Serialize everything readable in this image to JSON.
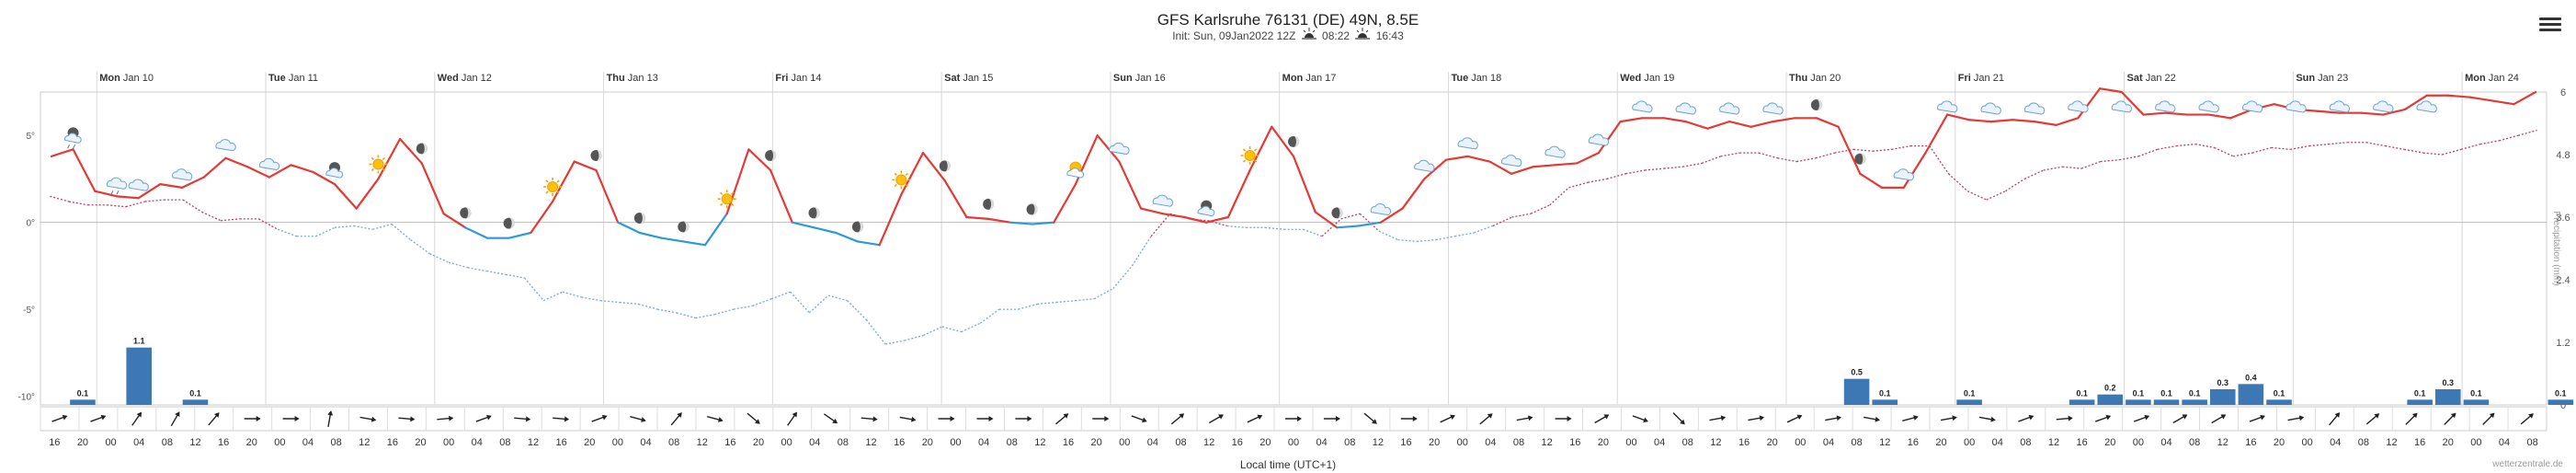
{
  "header": {
    "title": "GFS Karlsruhe 76131 (DE) 49N, 8.5E",
    "init": "Init: Sun, 09Jan2022 12Z",
    "sunrise": "08:22",
    "sunset": "16:43"
  },
  "footer": {
    "xlabel": "Local time (UTC+1)",
    "credit": "wetterzentrale.de"
  },
  "colors": {
    "warm": "#e53935",
    "cold": "#2c9ad9",
    "dew": "#b0416a",
    "dew_cold": "#7aa8c8",
    "precip": "#3d78b5"
  },
  "chart_data": {
    "type": "line",
    "title": "GFS Karlsruhe 76131 (DE) 49N, 8.5E",
    "xlabel": "Local time (UTC+1)",
    "y_left": {
      "label": "Temperature (°C)",
      "ticks": [
        "5°",
        "0°",
        "-5°",
        "-10°"
      ],
      "tick_values": [
        5,
        0,
        -5,
        -10
      ],
      "range": [
        -10.5,
        7.5
      ]
    },
    "y_right": {
      "label": "Precipitation (mm)",
      "ticks": [
        "6",
        "4.8",
        "3.6",
        "2.4",
        "1.2",
        "0"
      ],
      "tick_values": [
        6,
        4.8,
        3.6,
        2.4,
        1.2,
        0
      ],
      "range": [
        0,
        6
      ]
    },
    "x_start_hour": 16,
    "step_hours": 4,
    "days": [
      {
        "dow": "Mon",
        "date": "Jan 10",
        "index": 2
      },
      {
        "dow": "Tue",
        "date": "Jan 11",
        "index": 8
      },
      {
        "dow": "Wed",
        "date": "Jan 12",
        "index": 14
      },
      {
        "dow": "Thu",
        "date": "Jan 13",
        "index": 20
      },
      {
        "dow": "Fri",
        "date": "Jan 14",
        "index": 26
      },
      {
        "dow": "Sat",
        "date": "Jan 15",
        "index": 32
      },
      {
        "dow": "Sun",
        "date": "Jan 16",
        "index": 38
      },
      {
        "dow": "Mon",
        "date": "Jan 17",
        "index": 44
      },
      {
        "dow": "Tue",
        "date": "Jan 18",
        "index": 50
      },
      {
        "dow": "Wed",
        "date": "Jan 19",
        "index": 56
      },
      {
        "dow": "Thu",
        "date": "Jan 20",
        "index": 62
      },
      {
        "dow": "Fri",
        "date": "Jan 21",
        "index": 68
      },
      {
        "dow": "Sat",
        "date": "Jan 22",
        "index": 74
      },
      {
        "dow": "Sun",
        "date": "Jan 23",
        "index": 80
      },
      {
        "dow": "Mon",
        "date": "Jan 24",
        "index": 86
      }
    ],
    "hour_labels": [
      "16",
      "20",
      "00",
      "04",
      "08",
      "12",
      "16",
      "20",
      "00",
      "04",
      "08",
      "12",
      "16",
      "20",
      "00",
      "04",
      "08",
      "12",
      "16",
      "20",
      "00",
      "04",
      "08",
      "12",
      "16",
      "20",
      "00",
      "04",
      "08",
      "12",
      "16",
      "20",
      "00",
      "04",
      "08",
      "12",
      "16",
      "20",
      "00",
      "04",
      "08",
      "12",
      "16",
      "20",
      "00",
      "04",
      "08",
      "12",
      "16",
      "20",
      "00",
      "04",
      "08",
      "12",
      "16",
      "20",
      "00",
      "04",
      "08",
      "12",
      "16",
      "20",
      "00",
      "04",
      "08",
      "12",
      "16",
      "20",
      "00",
      "04",
      "08",
      "12",
      "16",
      "20",
      "00",
      "04",
      "08",
      "12",
      "16",
      "20",
      "00",
      "04",
      "08",
      "12",
      "16",
      "20",
      "00",
      "04",
      "08"
    ],
    "series": [
      {
        "name": "Temperature (2 m)",
        "unit": "°C",
        "values": [
          3.8,
          4.2,
          1.8,
          1.5,
          1.4,
          2.2,
          2.0,
          2.6,
          3.7,
          3.2,
          2.6,
          3.3,
          2.9,
          2.2,
          0.8,
          2.5,
          4.8,
          3.4,
          0.5,
          -0.3,
          -0.9,
          -0.9,
          -0.6,
          1.2,
          3.5,
          3.0,
          0.0,
          -0.6,
          -0.9,
          -1.1,
          -1.3,
          0.5,
          4.2,
          3.0,
          0.0,
          -0.3,
          -0.6,
          -1.1,
          -1.3,
          1.6,
          4.0,
          2.4,
          0.3,
          0.2,
          0.0,
          -0.1,
          0.0,
          2.2,
          5.0,
          3.5,
          0.8,
          0.5,
          0.3,
          0.0,
          0.3,
          3.0,
          5.5,
          3.8,
          0.6,
          -0.3,
          -0.2,
          0.0,
          0.8,
          2.5,
          3.6,
          3.8,
          3.5,
          2.8,
          3.2,
          3.3,
          3.4,
          4.0,
          5.8,
          6.0,
          6.0,
          5.8,
          5.4,
          5.8,
          5.5,
          5.8,
          6.0,
          6.0,
          5.5,
          2.8,
          2.0,
          2.0,
          4.0,
          6.2,
          5.9,
          5.8,
          5.9,
          5.8,
          5.6,
          6.0,
          7.7,
          7.5,
          6.2,
          6.3,
          6.2,
          6.2,
          6.0,
          6.5,
          6.8,
          6.5,
          6.4,
          6.3,
          6.3,
          6.2,
          6.5,
          7.3,
          7.3,
          7.2,
          7.0,
          6.8,
          7.5
        ]
      },
      {
        "name": "Dew point",
        "unit": "°C",
        "values": [
          1.5,
          1.2,
          1.0,
          1.0,
          0.9,
          1.2,
          1.3,
          1.3,
          0.6,
          0.1,
          0.2,
          0.2,
          -0.4,
          -0.8,
          -0.8,
          -0.3,
          -0.2,
          -0.4,
          -0.1,
          -1.0,
          -1.8,
          -2.3,
          -2.6,
          -2.8,
          -3.0,
          -3.2,
          -4.5,
          -4.0,
          -4.3,
          -4.5,
          -4.6,
          -4.7,
          -5.0,
          -5.2,
          -5.5,
          -5.3,
          -5.0,
          -4.8,
          -4.4,
          -4.0,
          -5.2,
          -4.2,
          -4.5,
          -5.6,
          -7.0,
          -6.8,
          -6.5,
          -6.0,
          -6.3,
          -5.8,
          -5.0,
          -5.0,
          -4.7,
          -4.6,
          -4.5,
          -4.4,
          -3.8,
          -2.5,
          -0.8,
          0.5,
          0.2,
          0.1,
          -0.2,
          -0.3,
          -0.3,
          -0.4,
          -0.4,
          -0.8,
          0.2,
          0.5,
          -0.5,
          -1.0,
          -1.1,
          -1.0,
          -0.8,
          -0.6,
          -0.2,
          0.3,
          0.5,
          1.0,
          2.0,
          2.3,
          2.5,
          2.8,
          3.0,
          3.1,
          3.2,
          3.4,
          3.8,
          4.0,
          4.0,
          3.7,
          3.5,
          3.7,
          4.0,
          4.2,
          4.1,
          4.2,
          4.4,
          4.4,
          2.8,
          1.8,
          1.3,
          1.8,
          2.5,
          3.0,
          3.2,
          3.1,
          3.5,
          3.6,
          3.8,
          4.2,
          4.4,
          4.5,
          4.3,
          3.8,
          4.0,
          4.3,
          4.2,
          4.4,
          4.5,
          4.6,
          4.6,
          4.4,
          4.2,
          4.0,
          3.9,
          4.2,
          4.5,
          4.7,
          5.0,
          5.3
        ]
      },
      {
        "name": "Precipitation",
        "unit": "mm",
        "bars": [
          {
            "index": 1,
            "value": 0.1
          },
          {
            "index": 3,
            "value": 1.1
          },
          {
            "index": 5,
            "value": 0.1
          },
          {
            "index": 64,
            "value": 0.5
          },
          {
            "index": 65,
            "value": 0.1
          },
          {
            "index": 68,
            "value": 0.1
          },
          {
            "index": 72,
            "value": 0.1
          },
          {
            "index": 73,
            "value": 0.2
          },
          {
            "index": 74,
            "value": 0.1
          },
          {
            "index": 75,
            "value": 0.1
          },
          {
            "index": 76,
            "value": 0.1
          },
          {
            "index": 77,
            "value": 0.3
          },
          {
            "index": 78,
            "value": 0.4
          },
          {
            "index": 79,
            "value": 0.1
          },
          {
            "index": 84,
            "value": 0.1
          },
          {
            "index": 85,
            "value": 0.3
          },
          {
            "index": 86,
            "value": 0.1
          },
          {
            "index": 89,
            "value": 0.1
          },
          {
            "index": 95,
            "value": 0.1
          },
          {
            "index": 98,
            "value": 0.1
          },
          {
            "index": 99,
            "value": 0.1
          },
          {
            "index": 100,
            "value": 0.1
          },
          {
            "index": 101,
            "value": 0.1
          },
          {
            "index": 103,
            "value": 0.1
          },
          {
            "index": 107,
            "value": 0.1
          },
          {
            "index": 109,
            "value": 0.1
          }
        ]
      },
      {
        "name": "Wind direction (deg, arrow points toward)",
        "values": [
          70,
          70,
          35,
          30,
          40,
          90,
          90,
          10,
          100,
          95,
          85,
          70,
          95,
          95,
          70,
          105,
          40,
          105,
          130,
          35,
          125,
          95,
          100,
          90,
          90,
          90,
          50,
          90,
          110,
          50,
          60,
          65,
          90,
          90,
          130,
          90,
          65,
          50,
          80,
          90,
          60,
          110,
          135,
          80,
          80,
          65,
          80,
          100,
          75,
          80,
          100,
          70,
          85,
          70,
          70,
          60,
          60,
          70,
          80,
          40,
          50,
          45,
          45,
          45,
          50
        ]
      }
    ],
    "weather_icons": [
      {
        "index": 1,
        "type": "night-rain"
      },
      {
        "index": 3,
        "type": "cloud-rain"
      },
      {
        "index": 4,
        "type": "cloud"
      },
      {
        "index": 6,
        "type": "cloud"
      },
      {
        "index": 8,
        "type": "cloud"
      },
      {
        "index": 10,
        "type": "cloud"
      },
      {
        "index": 13,
        "type": "night-partly"
      },
      {
        "index": 15,
        "type": "sun"
      },
      {
        "index": 17,
        "type": "moon"
      },
      {
        "index": 19,
        "type": "moon"
      },
      {
        "index": 21,
        "type": "moon"
      },
      {
        "index": 23,
        "type": "sun"
      },
      {
        "index": 25,
        "type": "moon"
      },
      {
        "index": 27,
        "type": "moon"
      },
      {
        "index": 29,
        "type": "moon"
      },
      {
        "index": 31,
        "type": "sun"
      },
      {
        "index": 33,
        "type": "moon"
      },
      {
        "index": 35,
        "type": "moon"
      },
      {
        "index": 37,
        "type": "moon"
      },
      {
        "index": 39,
        "type": "sun"
      },
      {
        "index": 41,
        "type": "moon"
      },
      {
        "index": 43,
        "type": "moon"
      },
      {
        "index": 45,
        "type": "moon"
      },
      {
        "index": 47,
        "type": "sun-cloud"
      },
      {
        "index": 49,
        "type": "cloud"
      },
      {
        "index": 51,
        "type": "cloud"
      },
      {
        "index": 53,
        "type": "night-partly"
      },
      {
        "index": 55,
        "type": "sun"
      },
      {
        "index": 57,
        "type": "moon"
      },
      {
        "index": 59,
        "type": "moon"
      },
      {
        "index": 61,
        "type": "cloud"
      },
      {
        "index": 63,
        "type": "cloud"
      },
      {
        "index": 65,
        "type": "cloud"
      },
      {
        "index": 67,
        "type": "cloud"
      },
      {
        "index": 69,
        "type": "cloud"
      },
      {
        "index": 71,
        "type": "cloud"
      },
      {
        "index": 73,
        "type": "cloud"
      },
      {
        "index": 75,
        "type": "cloud"
      },
      {
        "index": 77,
        "type": "cloud"
      },
      {
        "index": 79,
        "type": "cloud"
      },
      {
        "index": 81,
        "type": "moon"
      },
      {
        "index": 83,
        "type": "moon"
      },
      {
        "index": 85,
        "type": "cloud"
      },
      {
        "index": 87,
        "type": "cloud"
      },
      {
        "index": 89,
        "type": "cloud"
      },
      {
        "index": 91,
        "type": "cloud"
      },
      {
        "index": 93,
        "type": "cloud"
      },
      {
        "index": 95,
        "type": "cloud"
      },
      {
        "index": 97,
        "type": "cloud"
      },
      {
        "index": 99,
        "type": "cloud"
      },
      {
        "index": 101,
        "type": "cloud"
      },
      {
        "index": 103,
        "type": "cloud"
      },
      {
        "index": 105,
        "type": "cloud"
      },
      {
        "index": 107,
        "type": "cloud"
      },
      {
        "index": 109,
        "type": "cloud"
      }
    ]
  }
}
